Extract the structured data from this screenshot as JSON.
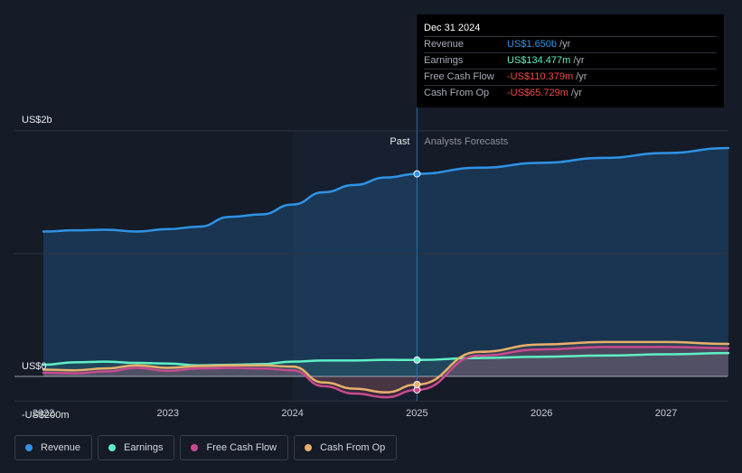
{
  "tooltip": {
    "date": "Dec 31 2024",
    "rows": [
      {
        "label": "Revenue",
        "value": "US$1.650b",
        "unit": "/yr",
        "color": "#2e93e6"
      },
      {
        "label": "Earnings",
        "value": "US$134.477m",
        "unit": "/yr",
        "color": "#5ff0c5"
      },
      {
        "label": "Free Cash Flow",
        "value": "-US$110.379m",
        "unit": "/yr",
        "color": "#f04a4a"
      },
      {
        "label": "Cash From Op",
        "value": "-US$65.729m",
        "unit": "/yr",
        "color": "#f04a4a"
      }
    ]
  },
  "legend": [
    {
      "label": "Revenue",
      "color": "#2e93e6"
    },
    {
      "label": "Earnings",
      "color": "#5ff0c5"
    },
    {
      "label": "Free Cash Flow",
      "color": "#c94a8f"
    },
    {
      "label": "Cash From Op",
      "color": "#e8b06a"
    }
  ],
  "chart_data": {
    "type": "line",
    "ylim": [
      -200,
      2000
    ],
    "y_tick_labels": [
      {
        "value": 2000,
        "label": "US$2b"
      },
      {
        "value": 0,
        "label": "US$0"
      },
      {
        "value": -200,
        "label": "-US$200m"
      }
    ],
    "x_ticks": [
      2022,
      2023,
      2024,
      2025,
      2026,
      2027
    ],
    "xlim": [
      2021.9,
      2027.5
    ],
    "past_label": "Past",
    "forecast_label": "Analysts Forecasts",
    "divider_x": 2025.0,
    "shaded_past_start": 2024.0,
    "series": [
      {
        "name": "Revenue",
        "color": "#2e93e6",
        "x": [
          2022.0,
          2022.25,
          2022.5,
          2022.75,
          2023.0,
          2023.25,
          2023.5,
          2023.75,
          2024.0,
          2024.25,
          2024.5,
          2024.75,
          2025.0,
          2025.5,
          2026.0,
          2026.5,
          2027.0,
          2027.5
        ],
        "y": [
          1180,
          1190,
          1195,
          1180,
          1200,
          1220,
          1300,
          1320,
          1400,
          1500,
          1560,
          1620,
          1650,
          1700,
          1740,
          1780,
          1820,
          1860
        ]
      },
      {
        "name": "Earnings",
        "color": "#5ff0c5",
        "x": [
          2022.0,
          2022.25,
          2022.5,
          2022.75,
          2023.0,
          2023.25,
          2023.5,
          2023.75,
          2024.0,
          2024.25,
          2024.5,
          2024.75,
          2025.0,
          2025.5,
          2026.0,
          2026.5,
          2027.0,
          2027.5
        ],
        "y": [
          95,
          115,
          120,
          110,
          105,
          90,
          95,
          100,
          120,
          130,
          130,
          135,
          134,
          150,
          160,
          170,
          180,
          190
        ]
      },
      {
        "name": "Free Cash Flow",
        "color": "#c94a8f",
        "x": [
          2022.0,
          2022.25,
          2022.5,
          2022.75,
          2023.0,
          2023.25,
          2023.5,
          2023.75,
          2024.0,
          2024.25,
          2024.5,
          2024.75,
          2025.0,
          2025.5,
          2026.0,
          2026.5,
          2027.0,
          2027.5
        ],
        "y": [
          30,
          25,
          40,
          70,
          45,
          65,
          70,
          65,
          50,
          -80,
          -140,
          -170,
          -110,
          170,
          220,
          240,
          240,
          230
        ]
      },
      {
        "name": "Cash From Op",
        "color": "#e8b06a",
        "x": [
          2022.0,
          2022.25,
          2022.5,
          2022.75,
          2023.0,
          2023.25,
          2023.5,
          2023.75,
          2024.0,
          2024.25,
          2024.5,
          2024.75,
          2025.0,
          2025.5,
          2026.0,
          2026.5,
          2027.0,
          2027.5
        ],
        "y": [
          55,
          50,
          65,
          90,
          70,
          85,
          90,
          90,
          80,
          -50,
          -100,
          -130,
          -66,
          200,
          260,
          280,
          280,
          265
        ]
      }
    ],
    "markers_at": 2025.0
  }
}
